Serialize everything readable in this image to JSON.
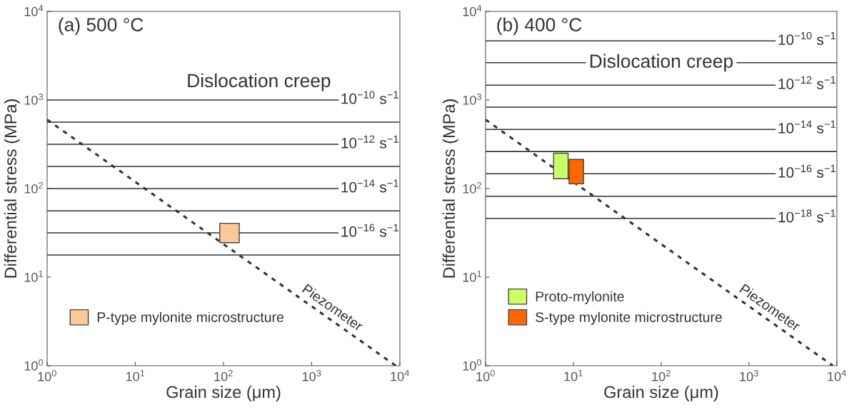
{
  "chart_data": [
    {
      "type": "line",
      "title": "(a) 500 °C",
      "xlabel": "Grain size (μm)",
      "ylabel": "Differential stress (MPa)",
      "log": "xy",
      "xlim": [
        1,
        10000
      ],
      "ylim": [
        1,
        10000
      ],
      "xticks": [
        {
          "value": 1,
          "label": "10$^{0}$"
        },
        {
          "value": 10,
          "label": "10$^{1}$"
        },
        {
          "value": 100,
          "label": "10$^{2}$"
        },
        {
          "value": 1000,
          "label": "10$^{3}$"
        },
        {
          "value": 10000,
          "label": "10$^{4}$"
        }
      ],
      "yticks": [
        {
          "value": 1,
          "label": "10$^{0}$"
        },
        {
          "value": 10,
          "label": "10$^{1}$"
        },
        {
          "value": 100,
          "label": "10$^{2}$"
        },
        {
          "value": 1000,
          "label": "10$^{3}$"
        },
        {
          "value": 10000,
          "label": "10$^{4}$"
        }
      ],
      "grid": false,
      "legend": "bottom left",
      "annotations": [
        "Dislocation creep"
      ],
      "series": [
        {
          "name": "Piezometer",
          "color": "#333333",
          "line_style": "dotted",
          "x": [
            1,
            9000
          ],
          "values": [
            600,
            1
          ]
        },
        {
          "type": "bar",
          "name": "P-type mylonite microstructure",
          "color": "#fcc896",
          "x": [
            117
          ],
          "base": [
            24.5
          ],
          "values": [
            16
          ]
        }
      ],
      "ref_lines": [
        {
          "axis": "y",
          "value": 1000,
          "label": "10$^{−10}$ s$^{−1}$",
          "color": "#333333"
        },
        {
          "axis": "y",
          "value": 562,
          "color": "#333333"
        },
        {
          "axis": "y",
          "value": 316,
          "label": "10$^{−12}$ s$^{−1}$",
          "color": "#333333"
        },
        {
          "axis": "y",
          "value": 178,
          "color": "#333333"
        },
        {
          "axis": "y",
          "value": 100,
          "label": "10$^{−14}$ s$^{−1}$",
          "color": "#333333"
        },
        {
          "axis": "y",
          "value": 56,
          "color": "#333333"
        },
        {
          "axis": "y",
          "value": 31.6,
          "label": "10$^{−16}$ s$^{−1}$",
          "color": "#333333"
        },
        {
          "axis": "y",
          "value": 17.8,
          "color": "#333333"
        }
      ]
    },
    {
      "type": "line",
      "title": "(b) 400 °C",
      "xlabel": "Grain size (μm)",
      "ylabel": "Differential stress (MPa)",
      "log": "xy",
      "xlim": [
        1,
        10000
      ],
      "ylim": [
        1,
        10000
      ],
      "xticks": [
        {
          "value": 1,
          "label": "10$^{0}$"
        },
        {
          "value": 10,
          "label": "10$^{1}$"
        },
        {
          "value": 100,
          "label": "10$^{2}$"
        },
        {
          "value": 1000,
          "label": "10$^{3}$"
        },
        {
          "value": 10000,
          "label": "10$^{4}$"
        }
      ],
      "yticks": [
        {
          "value": 1,
          "label": "10$^{0}$"
        },
        {
          "value": 10,
          "label": "10$^{1}$"
        },
        {
          "value": 100,
          "label": "10$^{2}$"
        },
        {
          "value": 1000,
          "label": "10$^{3}$"
        },
        {
          "value": 10000,
          "label": "10$^{4}$"
        }
      ],
      "grid": false,
      "legend": "bottom left",
      "annotations": [
        "Dislocation creep"
      ],
      "series": [
        {
          "name": "Piezometer",
          "color": "#333333",
          "line_style": "dotted",
          "x": [
            1,
            9000
          ],
          "values": [
            600,
            1
          ]
        },
        {
          "type": "bar",
          "name": "Proto-mylonite",
          "color": "#ccff66",
          "x": [
            7.2
          ],
          "base": [
            129
          ],
          "values": [
            122
          ]
        },
        {
          "type": "bar",
          "name": "S-type mylonite microstructure",
          "color": "#ff6600",
          "x": [
            10.8
          ],
          "base": [
            113
          ],
          "values": [
            100
          ]
        }
      ],
      "ref_lines": [
        {
          "axis": "y",
          "value": 4640,
          "label": "10$^{−10}$ s$^{−1}$",
          "color": "#333333"
        },
        {
          "axis": "y",
          "value": 2640,
          "color": "#333333"
        },
        {
          "axis": "y",
          "value": 1470,
          "label": "10$^{−12}$ s$^{−1}$",
          "color": "#333333"
        },
        {
          "axis": "y",
          "value": 830,
          "color": "#333333"
        },
        {
          "axis": "y",
          "value": 464,
          "label": "10$^{−14}$ s$^{−1}$",
          "color": "#333333"
        },
        {
          "axis": "y",
          "value": 262,
          "color": "#333333"
        },
        {
          "axis": "y",
          "value": 147,
          "label": "10$^{−16}$ s$^{−1}$",
          "color": "#333333"
        },
        {
          "axis": "y",
          "value": 82,
          "color": "#333333"
        },
        {
          "axis": "y",
          "value": 46,
          "label": "10$^{−18}$ s$^{−1}$",
          "color": "#333333"
        }
      ]
    }
  ]
}
